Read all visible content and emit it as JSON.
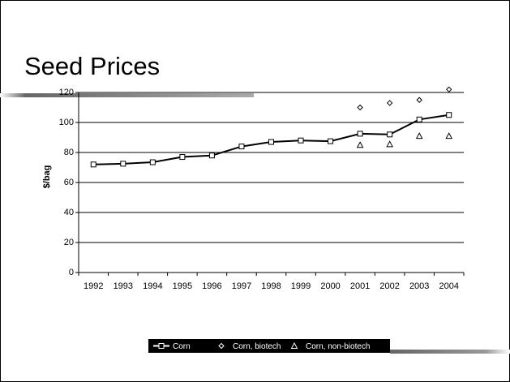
{
  "chart_data": {
    "type": "line",
    "title": "Seed Prices",
    "y_label": "$/bag",
    "categories": [
      "1992",
      "1993",
      "1994",
      "1995",
      "1996",
      "1997",
      "1998",
      "1999",
      "2000",
      "2001",
      "2002",
      "2003",
      "2004"
    ],
    "series": [
      {
        "name": "Corn",
        "color": "#000000",
        "marker": "square",
        "line": true,
        "values": [
          72,
          72.5,
          73.5,
          77,
          78,
          84,
          87,
          88,
          87.5,
          92.5,
          92,
          102,
          105
        ]
      },
      {
        "name": "Corn, biotech",
        "color": "#000000",
        "marker": "diamond",
        "line": false,
        "values": [
          null,
          null,
          null,
          null,
          null,
          null,
          null,
          null,
          null,
          110,
          113,
          115,
          122
        ]
      },
      {
        "name": "Corn, non-biotech",
        "color": "#000000",
        "marker": "triangle",
        "line": false,
        "values": [
          null,
          null,
          null,
          null,
          null,
          null,
          null,
          null,
          null,
          85,
          85.5,
          91,
          91
        ]
      }
    ],
    "ylim": [
      0,
      120
    ],
    "yticks": [
      0,
      20,
      40,
      60,
      80,
      100,
      120
    ],
    "grid": true,
    "legend": "bottom"
  }
}
